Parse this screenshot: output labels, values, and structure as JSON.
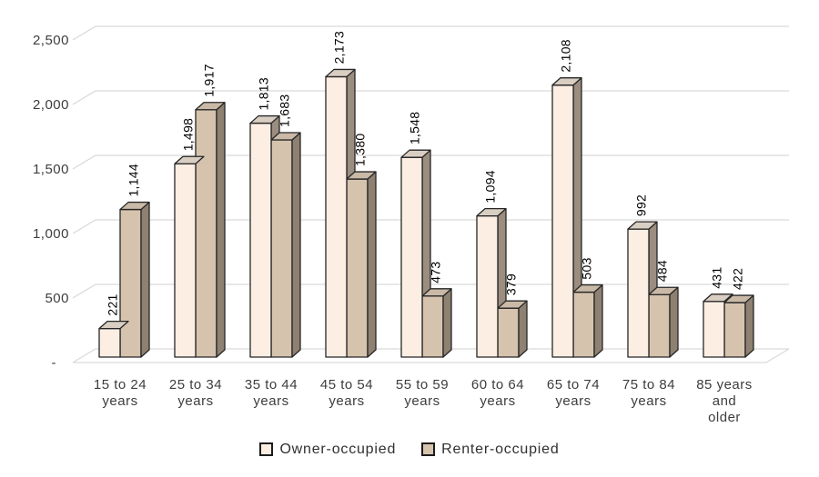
{
  "chart_data": {
    "type": "bar",
    "subtype": "3d-clustered-column",
    "title": "",
    "xlabel": "",
    "ylabel": "",
    "ylim": [
      0,
      2500
    ],
    "ytick_step": 500,
    "yticks": [
      {
        "value": 2500,
        "label": "2,500"
      },
      {
        "value": 2000,
        "label": "2,000"
      },
      {
        "value": 1500,
        "label": "1,500"
      },
      {
        "value": 1000,
        "label": "1,000"
      },
      {
        "value": 500,
        "label": "500"
      },
      {
        "value": 0,
        "label": "-"
      }
    ],
    "grid": "horizontal",
    "legend_position": "bottom",
    "categories": [
      "15 to 24 years",
      "25 to 34 years",
      "35 to 44 years",
      "45 to 54 years",
      "55 to 59 years",
      "60 to 64 years",
      "65 to 74 years",
      "75 to 84 years",
      "85 years and older"
    ],
    "category_label_lines": [
      [
        "15 to 24",
        "years"
      ],
      [
        "25 to 34",
        "years"
      ],
      [
        "35 to 44",
        "years"
      ],
      [
        "45 to 54",
        "years"
      ],
      [
        "55 to 59",
        "years"
      ],
      [
        "60 to 64",
        "years"
      ],
      [
        "65 to 74",
        "years"
      ],
      [
        "75 to 84",
        "years"
      ],
      [
        "85 years",
        "and",
        "older"
      ]
    ],
    "series": [
      {
        "name": "Owner-occupied",
        "values": [
          221,
          1498,
          1813,
          2173,
          1548,
          1094,
          2108,
          992,
          431
        ],
        "data_labels": [
          "221",
          "1,498",
          "1,813",
          "2,173",
          "1,548",
          "1,094",
          "2,108",
          "992",
          "431"
        ],
        "color_front": "#fdeee3",
        "color_top": "#d9cec2",
        "color_side": "#9b8d7f"
      },
      {
        "name": "Renter-occupied",
        "values": [
          1144,
          1917,
          1683,
          1380,
          473,
          379,
          503,
          484,
          422
        ],
        "data_labels": [
          "1,144",
          "1,917",
          "1,683",
          "1,380",
          "473",
          "379",
          "503",
          "484",
          "422"
        ],
        "color_front": "#d6c3ae",
        "color_top": "#c9b9a6",
        "color_side": "#8e8172"
      }
    ],
    "colors": {
      "gridline": "#d9d9d9",
      "outline": "#262626",
      "axis_text": "#3d3d3d",
      "data_label_text": "#000000",
      "background": "#ffffff"
    }
  }
}
